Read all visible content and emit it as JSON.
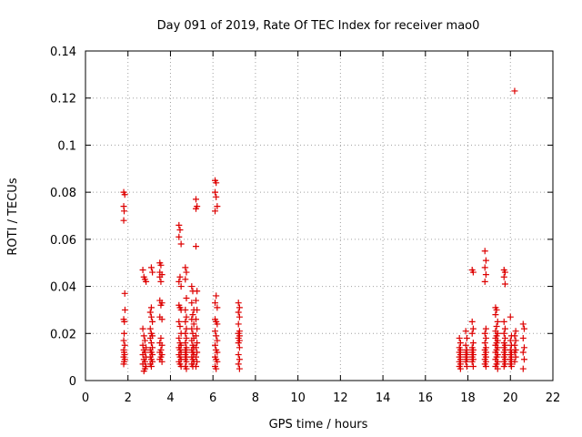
{
  "chart_data": {
    "type": "scatter",
    "title": "Day 091 of 2019, Rate Of TEC Index for receiver mao0",
    "xlabel": "GPS time / hours",
    "ylabel": "ROTI / TECUs",
    "xlim": [
      0,
      22
    ],
    "ylim": [
      0,
      0.14
    ],
    "grid": true,
    "marker": "+",
    "series_color": "#dd0000",
    "xticks": [
      {
        "value": 0,
        "label": "0"
      },
      {
        "value": 2,
        "label": "2"
      },
      {
        "value": 4,
        "label": "4"
      },
      {
        "value": 6,
        "label": "6"
      },
      {
        "value": 8,
        "label": "8"
      },
      {
        "value": 10,
        "label": "10"
      },
      {
        "value": 12,
        "label": "12"
      },
      {
        "value": 14,
        "label": "14"
      },
      {
        "value": 16,
        "label": "16"
      },
      {
        "value": 18,
        "label": "18"
      },
      {
        "value": 20,
        "label": "20"
      },
      {
        "value": 22,
        "label": "22"
      }
    ],
    "yticks": [
      {
        "value": 0,
        "label": "0"
      },
      {
        "value": 0.02,
        "label": "0.02"
      },
      {
        "value": 0.04,
        "label": "0.04"
      },
      {
        "value": 0.06,
        "label": "0.06"
      },
      {
        "value": 0.08,
        "label": "0.08"
      },
      {
        "value": 0.1,
        "label": "0.1"
      },
      {
        "value": 0.12,
        "label": "0.12"
      },
      {
        "value": 0.14,
        "label": "0.14"
      }
    ],
    "points": [
      [
        1.8,
        0.08
      ],
      [
        1.85,
        0.079
      ],
      [
        1.8,
        0.074
      ],
      [
        1.82,
        0.072
      ],
      [
        1.8,
        0.068
      ],
      [
        1.85,
        0.037
      ],
      [
        1.8,
        0.026
      ],
      [
        1.83,
        0.025
      ],
      [
        1.82,
        0.02
      ],
      [
        1.8,
        0.017
      ],
      [
        1.85,
        0.015
      ],
      [
        1.8,
        0.013
      ],
      [
        1.82,
        0.012
      ],
      [
        1.84,
        0.011
      ],
      [
        1.8,
        0.01
      ],
      [
        1.85,
        0.009
      ],
      [
        1.82,
        0.008
      ],
      [
        1.8,
        0.007
      ],
      [
        1.86,
        0.03
      ],
      [
        2.7,
        0.047
      ],
      [
        2.75,
        0.044
      ],
      [
        2.8,
        0.043
      ],
      [
        2.85,
        0.042
      ],
      [
        2.7,
        0.022
      ],
      [
        2.75,
        0.019
      ],
      [
        2.8,
        0.017
      ],
      [
        2.7,
        0.015
      ],
      [
        2.85,
        0.014
      ],
      [
        2.75,
        0.013
      ],
      [
        2.8,
        0.012
      ],
      [
        2.7,
        0.011
      ],
      [
        2.85,
        0.01
      ],
      [
        2.75,
        0.009
      ],
      [
        2.8,
        0.008
      ],
      [
        2.7,
        0.007
      ],
      [
        2.85,
        0.006
      ],
      [
        2.8,
        0.005
      ],
      [
        2.75,
        0.004
      ],
      [
        3.1,
        0.048
      ],
      [
        3.15,
        0.046
      ],
      [
        3.1,
        0.031
      ],
      [
        3.05,
        0.029
      ],
      [
        3.1,
        0.027
      ],
      [
        3.15,
        0.025
      ],
      [
        3.05,
        0.022
      ],
      [
        3.1,
        0.02
      ],
      [
        3.15,
        0.019
      ],
      [
        3.05,
        0.018
      ],
      [
        3.1,
        0.016
      ],
      [
        3.15,
        0.014
      ],
      [
        3.05,
        0.013
      ],
      [
        3.1,
        0.012
      ],
      [
        3.15,
        0.011
      ],
      [
        3.05,
        0.01
      ],
      [
        3.1,
        0.009
      ],
      [
        3.15,
        0.008
      ],
      [
        3.05,
        0.007
      ],
      [
        3.1,
        0.006
      ],
      [
        3.5,
        0.05
      ],
      [
        3.55,
        0.049
      ],
      [
        3.5,
        0.046
      ],
      [
        3.6,
        0.045
      ],
      [
        3.5,
        0.044
      ],
      [
        3.55,
        0.042
      ],
      [
        3.5,
        0.034
      ],
      [
        3.6,
        0.033
      ],
      [
        3.55,
        0.032
      ],
      [
        3.5,
        0.027
      ],
      [
        3.6,
        0.026
      ],
      [
        3.55,
        0.018
      ],
      [
        3.5,
        0.016
      ],
      [
        3.6,
        0.015
      ],
      [
        3.55,
        0.013
      ],
      [
        3.5,
        0.012
      ],
      [
        3.6,
        0.011
      ],
      [
        3.55,
        0.01
      ],
      [
        3.5,
        0.009
      ],
      [
        3.6,
        0.008
      ],
      [
        4.4,
        0.066
      ],
      [
        4.45,
        0.064
      ],
      [
        4.4,
        0.061
      ],
      [
        4.5,
        0.058
      ],
      [
        4.45,
        0.044
      ],
      [
        4.4,
        0.042
      ],
      [
        4.5,
        0.04
      ],
      [
        4.4,
        0.032
      ],
      [
        4.45,
        0.031
      ],
      [
        4.5,
        0.03
      ],
      [
        4.4,
        0.025
      ],
      [
        4.45,
        0.023
      ],
      [
        4.5,
        0.02
      ],
      [
        4.4,
        0.018
      ],
      [
        4.45,
        0.016
      ],
      [
        4.5,
        0.015
      ],
      [
        4.4,
        0.014
      ],
      [
        4.45,
        0.013
      ],
      [
        4.5,
        0.012
      ],
      [
        4.4,
        0.011
      ],
      [
        4.45,
        0.01
      ],
      [
        4.5,
        0.009
      ],
      [
        4.4,
        0.008
      ],
      [
        4.45,
        0.007
      ],
      [
        4.5,
        0.006
      ],
      [
        4.7,
        0.048
      ],
      [
        4.75,
        0.046
      ],
      [
        4.7,
        0.043
      ],
      [
        4.75,
        0.035
      ],
      [
        4.7,
        0.03
      ],
      [
        4.75,
        0.027
      ],
      [
        4.7,
        0.025
      ],
      [
        4.75,
        0.022
      ],
      [
        4.7,
        0.02
      ],
      [
        4.75,
        0.018
      ],
      [
        4.7,
        0.016
      ],
      [
        4.75,
        0.014
      ],
      [
        4.7,
        0.013
      ],
      [
        4.75,
        0.012
      ],
      [
        4.7,
        0.011
      ],
      [
        4.75,
        0.01
      ],
      [
        4.7,
        0.009
      ],
      [
        4.75,
        0.008
      ],
      [
        4.7,
        0.006
      ],
      [
        4.75,
        0.005
      ],
      [
        5.0,
        0.04
      ],
      [
        5.05,
        0.038
      ],
      [
        5.0,
        0.033
      ],
      [
        5.1,
        0.03
      ],
      [
        5.05,
        0.028
      ],
      [
        5.0,
        0.026
      ],
      [
        5.1,
        0.024
      ],
      [
        5.0,
        0.022
      ],
      [
        5.05,
        0.02
      ],
      [
        5.1,
        0.018
      ],
      [
        5.0,
        0.017
      ],
      [
        5.05,
        0.015
      ],
      [
        5.1,
        0.014
      ],
      [
        5.0,
        0.013
      ],
      [
        5.05,
        0.012
      ],
      [
        5.1,
        0.011
      ],
      [
        5.0,
        0.01
      ],
      [
        5.05,
        0.009
      ],
      [
        5.1,
        0.008
      ],
      [
        5.0,
        0.007
      ],
      [
        5.05,
        0.006
      ],
      [
        5.2,
        0.077
      ],
      [
        5.25,
        0.074
      ],
      [
        5.2,
        0.073
      ],
      [
        5.2,
        0.057
      ],
      [
        5.25,
        0.038
      ],
      [
        5.2,
        0.034
      ],
      [
        5.25,
        0.03
      ],
      [
        5.2,
        0.026
      ],
      [
        5.25,
        0.022
      ],
      [
        5.2,
        0.019
      ],
      [
        5.25,
        0.016
      ],
      [
        5.2,
        0.014
      ],
      [
        5.25,
        0.012
      ],
      [
        5.2,
        0.01
      ],
      [
        5.25,
        0.008
      ],
      [
        5.2,
        0.006
      ],
      [
        6.1,
        0.085
      ],
      [
        6.15,
        0.084
      ],
      [
        6.1,
        0.08
      ],
      [
        6.15,
        0.078
      ],
      [
        6.2,
        0.074
      ],
      [
        6.1,
        0.072
      ],
      [
        6.15,
        0.036
      ],
      [
        6.1,
        0.033
      ],
      [
        6.2,
        0.031
      ],
      [
        6.1,
        0.026
      ],
      [
        6.15,
        0.025
      ],
      [
        6.2,
        0.024
      ],
      [
        6.1,
        0.021
      ],
      [
        6.15,
        0.019
      ],
      [
        6.2,
        0.017
      ],
      [
        6.1,
        0.015
      ],
      [
        6.15,
        0.013
      ],
      [
        6.2,
        0.012
      ],
      [
        6.1,
        0.01
      ],
      [
        6.15,
        0.009
      ],
      [
        6.2,
        0.008
      ],
      [
        6.1,
        0.006
      ],
      [
        6.15,
        0.005
      ],
      [
        7.2,
        0.033
      ],
      [
        7.25,
        0.031
      ],
      [
        7.2,
        0.029
      ],
      [
        7.25,
        0.027
      ],
      [
        7.2,
        0.024
      ],
      [
        7.25,
        0.021
      ],
      [
        7.2,
        0.02
      ],
      [
        7.25,
        0.019
      ],
      [
        7.2,
        0.018
      ],
      [
        7.25,
        0.017
      ],
      [
        7.2,
        0.016
      ],
      [
        7.25,
        0.014
      ],
      [
        7.2,
        0.011
      ],
      [
        7.25,
        0.009
      ],
      [
        7.2,
        0.007
      ],
      [
        7.25,
        0.005
      ],
      [
        17.6,
        0.018
      ],
      [
        17.65,
        0.016
      ],
      [
        17.6,
        0.014
      ],
      [
        17.65,
        0.013
      ],
      [
        17.6,
        0.012
      ],
      [
        17.65,
        0.011
      ],
      [
        17.6,
        0.01
      ],
      [
        17.65,
        0.009
      ],
      [
        17.6,
        0.008
      ],
      [
        17.65,
        0.007
      ],
      [
        17.6,
        0.006
      ],
      [
        17.65,
        0.005
      ],
      [
        17.9,
        0.021
      ],
      [
        17.95,
        0.018
      ],
      [
        17.9,
        0.015
      ],
      [
        17.95,
        0.013
      ],
      [
        17.9,
        0.012
      ],
      [
        17.95,
        0.011
      ],
      [
        17.9,
        0.01
      ],
      [
        17.95,
        0.009
      ],
      [
        17.9,
        0.008
      ],
      [
        17.95,
        0.006
      ],
      [
        18.2,
        0.047
      ],
      [
        18.25,
        0.046
      ],
      [
        18.2,
        0.025
      ],
      [
        18.25,
        0.022
      ],
      [
        18.2,
        0.02
      ],
      [
        18.25,
        0.016
      ],
      [
        18.2,
        0.014
      ],
      [
        18.25,
        0.013
      ],
      [
        18.2,
        0.012
      ],
      [
        18.25,
        0.011
      ],
      [
        18.2,
        0.01
      ],
      [
        18.25,
        0.009
      ],
      [
        18.2,
        0.008
      ],
      [
        18.25,
        0.006
      ],
      [
        18.8,
        0.055
      ],
      [
        18.85,
        0.051
      ],
      [
        18.8,
        0.048
      ],
      [
        18.85,
        0.045
      ],
      [
        18.8,
        0.042
      ],
      [
        18.85,
        0.022
      ],
      [
        18.8,
        0.02
      ],
      [
        18.85,
        0.018
      ],
      [
        18.8,
        0.016
      ],
      [
        18.85,
        0.014
      ],
      [
        18.8,
        0.013
      ],
      [
        18.85,
        0.012
      ],
      [
        18.8,
        0.011
      ],
      [
        18.85,
        0.01
      ],
      [
        18.8,
        0.009
      ],
      [
        18.85,
        0.008
      ],
      [
        18.8,
        0.007
      ],
      [
        18.85,
        0.006
      ],
      [
        19.3,
        0.031
      ],
      [
        19.35,
        0.03
      ],
      [
        19.3,
        0.028
      ],
      [
        19.4,
        0.025
      ],
      [
        19.35,
        0.023
      ],
      [
        19.3,
        0.021
      ],
      [
        19.4,
        0.02
      ],
      [
        19.35,
        0.019
      ],
      [
        19.3,
        0.018
      ],
      [
        19.4,
        0.017
      ],
      [
        19.35,
        0.016
      ],
      [
        19.3,
        0.015
      ],
      [
        19.4,
        0.014
      ],
      [
        19.35,
        0.013
      ],
      [
        19.3,
        0.012
      ],
      [
        19.4,
        0.011
      ],
      [
        19.35,
        0.01
      ],
      [
        19.3,
        0.009
      ],
      [
        19.4,
        0.008
      ],
      [
        19.35,
        0.007
      ],
      [
        19.3,
        0.006
      ],
      [
        19.4,
        0.005
      ],
      [
        19.7,
        0.047
      ],
      [
        19.75,
        0.046
      ],
      [
        19.7,
        0.044
      ],
      [
        19.75,
        0.041
      ],
      [
        19.7,
        0.025
      ],
      [
        19.75,
        0.022
      ],
      [
        19.7,
        0.02
      ],
      [
        19.75,
        0.018
      ],
      [
        19.7,
        0.016
      ],
      [
        19.75,
        0.015
      ],
      [
        19.7,
        0.014
      ],
      [
        19.75,
        0.013
      ],
      [
        19.7,
        0.012
      ],
      [
        19.75,
        0.011
      ],
      [
        19.7,
        0.01
      ],
      [
        19.75,
        0.009
      ],
      [
        19.7,
        0.008
      ],
      [
        19.75,
        0.007
      ],
      [
        19.7,
        0.006
      ],
      [
        20.0,
        0.027
      ],
      [
        20.05,
        0.019
      ],
      [
        20.0,
        0.017
      ],
      [
        20.05,
        0.015
      ],
      [
        20.0,
        0.013
      ],
      [
        20.05,
        0.012
      ],
      [
        20.0,
        0.011
      ],
      [
        20.05,
        0.01
      ],
      [
        20.0,
        0.009
      ],
      [
        20.05,
        0.008
      ],
      [
        20.0,
        0.007
      ],
      [
        20.05,
        0.006
      ],
      [
        20.2,
        0.123
      ],
      [
        20.25,
        0.021
      ],
      [
        20.2,
        0.019
      ],
      [
        20.25,
        0.017
      ],
      [
        20.2,
        0.015
      ],
      [
        20.25,
        0.013
      ],
      [
        20.2,
        0.012
      ],
      [
        20.25,
        0.01
      ],
      [
        20.2,
        0.008
      ],
      [
        20.6,
        0.024
      ],
      [
        20.65,
        0.022
      ],
      [
        20.6,
        0.018
      ],
      [
        20.65,
        0.014
      ],
      [
        20.6,
        0.012
      ],
      [
        20.65,
        0.009
      ],
      [
        20.6,
        0.005
      ]
    ]
  }
}
